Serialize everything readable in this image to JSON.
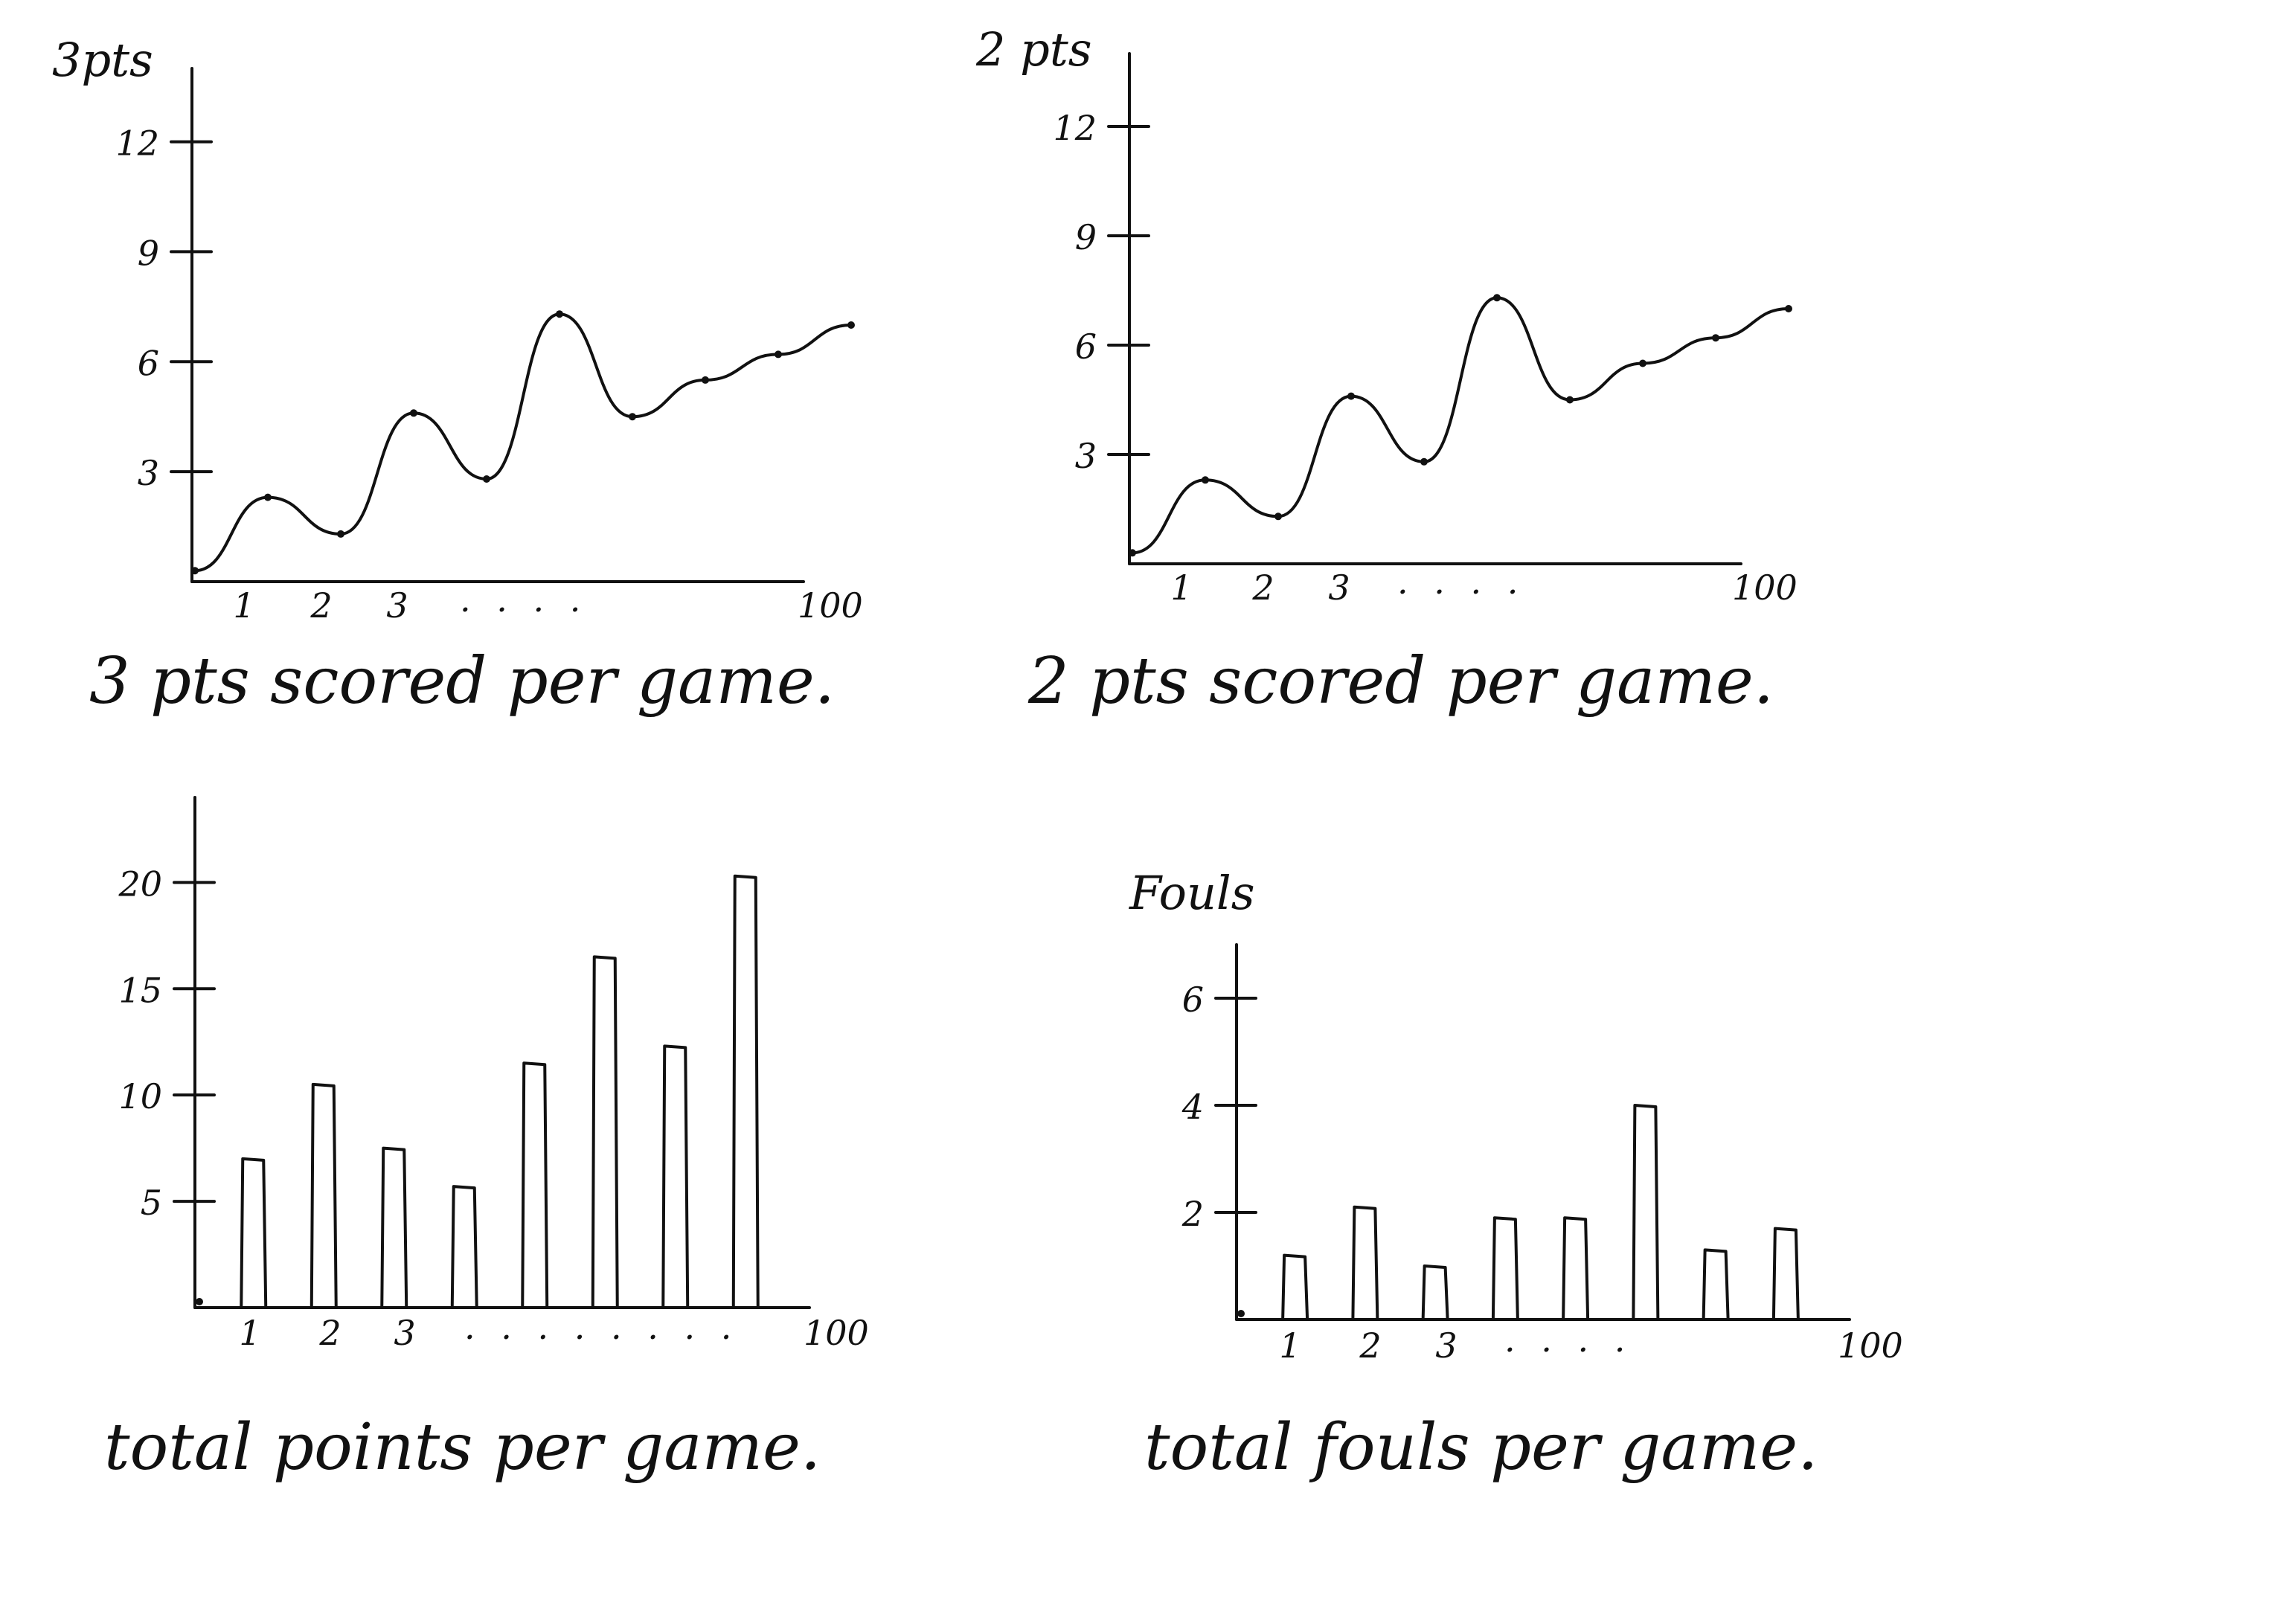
{
  "chart_data": [
    {
      "type": "line",
      "ylabel": "3pts",
      "ylim": [
        0,
        14
      ],
      "yticks": [
        "3",
        "6",
        "9",
        "12"
      ],
      "xticks": [
        "1",
        "2",
        "3"
      ],
      "x_ellipsis": ". . . .",
      "x_end": "100",
      "caption": "3 pts scored per game.",
      "x": [
        0,
        1,
        2,
        3,
        4,
        5,
        6,
        7,
        8,
        9
      ],
      "values": [
        0.3,
        2.3,
        1.3,
        4.6,
        2.8,
        7.3,
        4.5,
        5.5,
        6.2,
        7.0
      ]
    },
    {
      "type": "line",
      "ylabel": "2 pts",
      "ylim": [
        0,
        14
      ],
      "yticks": [
        "3",
        "6",
        "9",
        "12"
      ],
      "xticks": [
        "1",
        "2",
        "3"
      ],
      "x_ellipsis": ". . . .",
      "x_end": "100",
      "caption": "2 pts scored per game.",
      "x": [
        0,
        1,
        2,
        3,
        4,
        5,
        6,
        7,
        8,
        9
      ],
      "values": [
        0.3,
        2.3,
        1.3,
        4.6,
        2.8,
        7.3,
        4.5,
        5.5,
        6.2,
        7.0
      ]
    },
    {
      "type": "bar",
      "ylim": [
        0,
        24
      ],
      "yticks": [
        "5",
        "10",
        "15",
        "20"
      ],
      "xticks": [
        "1",
        "2",
        "3"
      ],
      "x_ellipsis": ". . . .  . . . .",
      "x_end": "100",
      "caption": "total points per game.",
      "values": [
        7,
        10.5,
        7.5,
        5.7,
        11.5,
        16.5,
        12.3,
        20.3
      ]
    },
    {
      "type": "bar",
      "ylabel": "Fouls",
      "ylim": [
        0,
        7
      ],
      "yticks": [
        "2",
        "4",
        "6"
      ],
      "xticks": [
        "1",
        "2",
        "3"
      ],
      "x_ellipsis": ". . . .",
      "x_end": "100",
      "caption": "total fouls per game.",
      "values": [
        1.2,
        2.1,
        1.0,
        1.9,
        1.9,
        4.0,
        1.3,
        1.7
      ]
    }
  ]
}
